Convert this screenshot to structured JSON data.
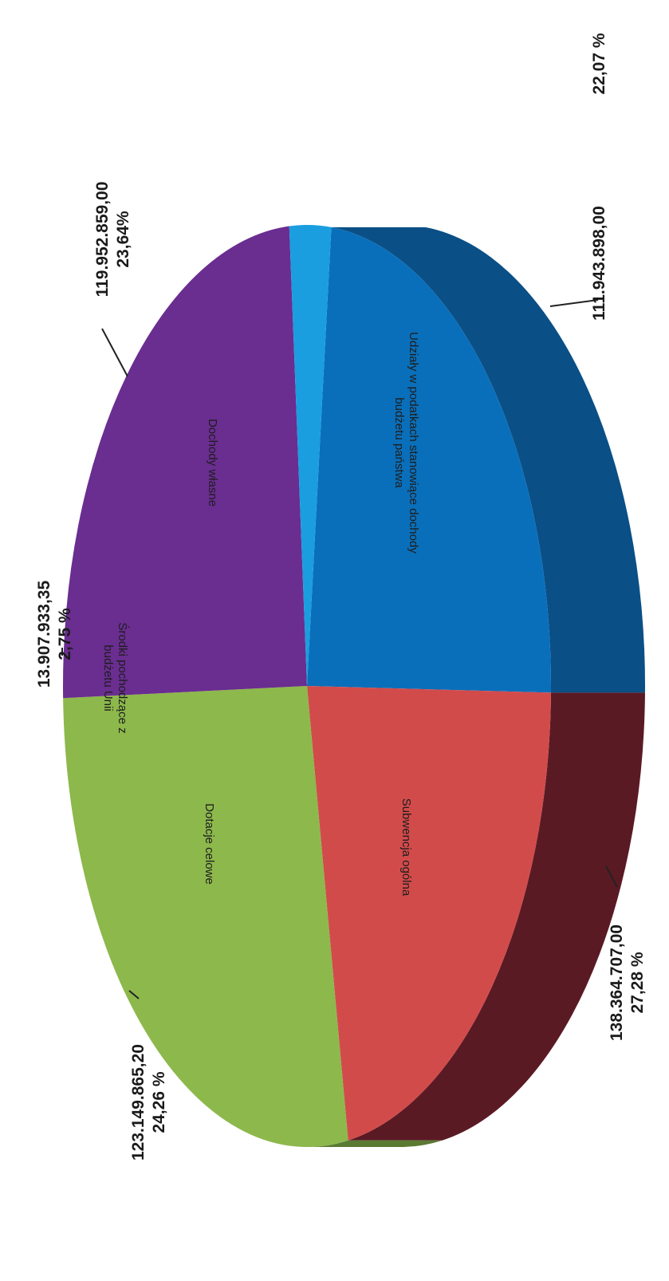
{
  "chart_data": {
    "type": "pie",
    "style": "3d-tilted",
    "orientation": "rotated-90-clockwise",
    "legend": "none",
    "slices": [
      {
        "label": "Dochody własne",
        "value": "119.952.859,00",
        "percent": "23,64%",
        "fraction": 0.2364,
        "color": "#0a6fba",
        "side_color": "#0a4f86"
      },
      {
        "label": "Udziały w podatkach stanowiące dochody budżetu państwa",
        "value": "111.943.898,00",
        "percent": "22,07 %",
        "fraction": 0.2207,
        "color": "#d24b4b",
        "side_color": "#5a1a24"
      },
      {
        "label": "Subwencja ogólna",
        "value": "138.364.707,00",
        "percent": "27,28 %",
        "fraction": 0.2728,
        "color": "#8db84c",
        "side_color": "#5a7a32"
      },
      {
        "label": "Dotacje celowe",
        "value": "123.149.865,20",
        "percent": "24,26 %",
        "fraction": 0.2426,
        "color": "#6a2d90",
        "side_color": "#4a1f66"
      },
      {
        "label": "Środki pochodzące z budżetu Unii",
        "value": "13.907.933,35",
        "percent": "2,75 %",
        "fraction": 0.0275,
        "color": "#1a9ee0",
        "side_color": "#1170a2"
      }
    ]
  }
}
